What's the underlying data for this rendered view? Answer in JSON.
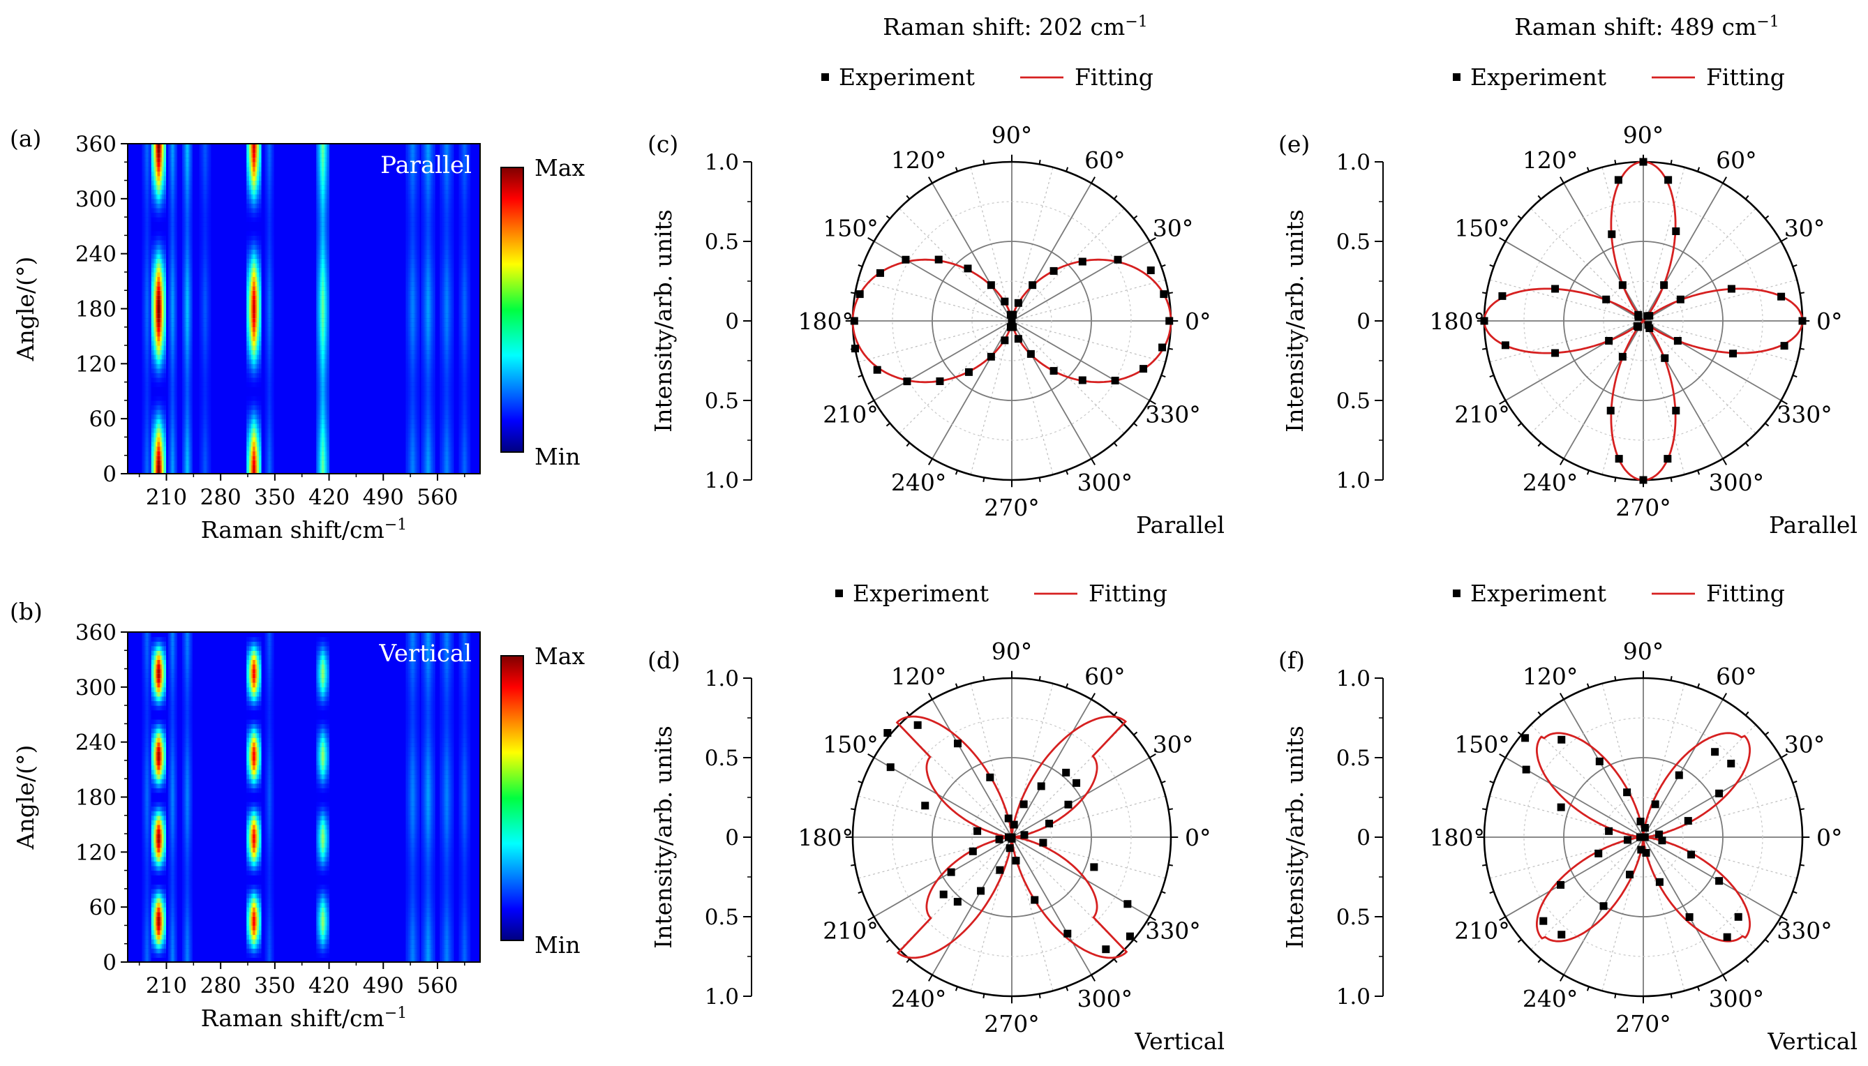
{
  "figure": {
    "titles": {
      "col1": "Raman shift: 202 cm",
      "col1_sup": "−1",
      "col2": "Raman shift: 489 cm",
      "col2_sup": "−1"
    },
    "legend": {
      "experiment": "Experiment",
      "fitting": "Fitting"
    },
    "colors": {
      "fit": "#d62020",
      "marker": "#000000",
      "axis": "#000000",
      "grid": "#808080"
    }
  },
  "chart_data": [
    {
      "panel": "(a)",
      "type": "heatmap",
      "label": "Parallel",
      "xlabel": "Raman shift/cm",
      "xlabel_sup": "−1",
      "ylabel": "Angle/(°)",
      "xlim": [
        160,
        615
      ],
      "ylim": [
        0,
        360
      ],
      "xticks": [
        210,
        280,
        350,
        420,
        490,
        560
      ],
      "yticks": [
        0,
        60,
        120,
        180,
        240,
        300,
        360
      ],
      "colorbar": {
        "max": "Max",
        "min": "Min"
      },
      "peaks": [
        {
          "x": 185,
          "w": 2.2,
          "amp": 0.12
        },
        {
          "x": 200,
          "w": 3.2,
          "amp": 1.0,
          "mode": "par"
        },
        {
          "x": 218,
          "w": 2.0,
          "amp": 0.18
        },
        {
          "x": 237,
          "w": 2.2,
          "amp": 0.22
        },
        {
          "x": 260,
          "w": 2.5,
          "amp": 0.1
        },
        {
          "x": 323,
          "w": 3.2,
          "amp": 0.9,
          "mode": "par"
        },
        {
          "x": 343,
          "w": 2.0,
          "amp": 0.12
        },
        {
          "x": 412,
          "w": 2.8,
          "amp": 0.4
        },
        {
          "x": 528,
          "w": 3,
          "amp": 0.15
        },
        {
          "x": 548,
          "w": 3,
          "amp": 0.18
        },
        {
          "x": 572,
          "w": 3,
          "amp": 0.15
        },
        {
          "x": 595,
          "w": 2.5,
          "amp": 0.12
        }
      ]
    },
    {
      "panel": "(b)",
      "type": "heatmap",
      "label": "Vertical",
      "xlabel": "Raman shift/cm",
      "xlabel_sup": "−1",
      "ylabel": "Angle/(°)",
      "xlim": [
        160,
        615
      ],
      "ylim": [
        0,
        360
      ],
      "xticks": [
        210,
        280,
        350,
        420,
        490,
        560
      ],
      "yticks": [
        0,
        60,
        120,
        180,
        240,
        300,
        360
      ],
      "colorbar": {
        "max": "Max",
        "min": "Min"
      },
      "peaks": [
        {
          "x": 185,
          "w": 2.2,
          "amp": 0.12
        },
        {
          "x": 200,
          "w": 3.2,
          "amp": 0.95,
          "mode": "vert"
        },
        {
          "x": 218,
          "w": 2.0,
          "amp": 0.15
        },
        {
          "x": 237,
          "w": 2.2,
          "amp": 0.15
        },
        {
          "x": 323,
          "w": 3.2,
          "amp": 0.85,
          "mode": "vert"
        },
        {
          "x": 343,
          "w": 2.0,
          "amp": 0.1
        },
        {
          "x": 412,
          "w": 2.8,
          "amp": 0.45,
          "mode": "vert"
        },
        {
          "x": 528,
          "w": 3,
          "amp": 0.15
        },
        {
          "x": 548,
          "w": 3,
          "amp": 0.18
        },
        {
          "x": 572,
          "w": 3,
          "amp": 0.15
        },
        {
          "x": 595,
          "w": 2.5,
          "amp": 0.12
        }
      ]
    },
    {
      "panel": "(c)",
      "type": "scatter",
      "polar": true,
      "label": "Parallel",
      "raman_shift": 202,
      "ylabel": "Intensity/arb. units",
      "rticks": [
        "1.0",
        "0.5",
        "0",
        "0.5",
        "1.0"
      ],
      "fit": {
        "model": "a*cos^2",
        "a": 1.0,
        "b": 0.0,
        "offset": 0
      },
      "series": [
        {
          "name": "Experiment",
          "points": [
            [
              0,
              0.99
            ],
            [
              10,
              0.97
            ],
            [
              20,
              0.93
            ],
            [
              30,
              0.77
            ],
            [
              40,
              0.58
            ],
            [
              50,
              0.41
            ],
            [
              60,
              0.26
            ],
            [
              70,
              0.12
            ],
            [
              80,
              0.04
            ],
            [
              90,
              0.01
            ],
            [
              100,
              0.04
            ],
            [
              110,
              0.13
            ],
            [
              120,
              0.26
            ],
            [
              130,
              0.43
            ],
            [
              140,
              0.6
            ],
            [
              150,
              0.77
            ],
            [
              160,
              0.88
            ],
            [
              170,
              0.97
            ],
            [
              180,
              0.99
            ],
            [
              190,
              1.0
            ],
            [
              200,
              0.9
            ],
            [
              210,
              0.76
            ],
            [
              220,
              0.59
            ],
            [
              230,
              0.42
            ],
            [
              240,
              0.26
            ],
            [
              250,
              0.13
            ],
            [
              260,
              0.04
            ],
            [
              270,
              0.0
            ],
            [
              280,
              0.04
            ],
            [
              290,
              0.12
            ],
            [
              300,
              0.24
            ],
            [
              310,
              0.41
            ],
            [
              320,
              0.58
            ],
            [
              330,
              0.75
            ],
            [
              340,
              0.88
            ],
            [
              350,
              0.96
            ]
          ]
        }
      ]
    },
    {
      "panel": "(d)",
      "type": "scatter",
      "polar": true,
      "label": "Vertical",
      "raman_shift": 202,
      "ylabel": "Intensity/arb. units",
      "rticks": [
        "1.0",
        "0.5",
        "0",
        "0.5",
        "1.0"
      ],
      "fit": {
        "model": "sin^2(2θ)",
        "a": 0.72,
        "b": 1.02
      },
      "series": [
        {
          "name": "Experiment",
          "points": [
            [
              0,
              0.0
            ],
            [
              10,
              0.08
            ],
            [
              20,
              0.25
            ],
            [
              30,
              0.41
            ],
            [
              40,
              0.53
            ],
            [
              50,
              0.53
            ],
            [
              60,
              0.37
            ],
            [
              70,
              0.22
            ],
            [
              80,
              0.08
            ],
            [
              90,
              0.0
            ],
            [
              100,
              0.12
            ],
            [
              110,
              0.4
            ],
            [
              120,
              0.68
            ],
            [
              130,
              0.92
            ],
            [
              140,
              1.02
            ],
            [
              150,
              0.88
            ],
            [
              160,
              0.58
            ],
            [
              170,
              0.22
            ],
            [
              180,
              0.02
            ],
            [
              190,
              0.08
            ],
            [
              200,
              0.26
            ],
            [
              210,
              0.44
            ],
            [
              220,
              0.56
            ],
            [
              230,
              0.53
            ],
            [
              240,
              0.39
            ],
            [
              250,
              0.22
            ],
            [
              260,
              0.07
            ],
            [
              270,
              0.01
            ],
            [
              280,
              0.15
            ],
            [
              290,
              0.42
            ],
            [
              300,
              0.7
            ],
            [
              310,
              0.92
            ],
            [
              320,
              0.97
            ],
            [
              330,
              0.84
            ],
            [
              340,
              0.55
            ],
            [
              350,
              0.2
            ]
          ]
        }
      ]
    },
    {
      "panel": "(e)",
      "type": "scatter",
      "polar": true,
      "label": "Parallel",
      "raman_shift": 489,
      "ylabel": "Intensity/arb. units",
      "rticks": [
        "1.0",
        "0.5",
        "0",
        "0.5",
        "1.0"
      ],
      "fit": {
        "model": "cos^2(2θ)",
        "a": 1.0,
        "b": 1.0
      },
      "series": [
        {
          "name": "Experiment",
          "points": [
            [
              0,
              1.0
            ],
            [
              10,
              0.88
            ],
            [
              20,
              0.59
            ],
            [
              30,
              0.27
            ],
            [
              40,
              0.05
            ],
            [
              50,
              0.04
            ],
            [
              60,
              0.26
            ],
            [
              70,
              0.6
            ],
            [
              80,
              0.9
            ],
            [
              90,
              1.0
            ],
            [
              100,
              0.9
            ],
            [
              110,
              0.58
            ],
            [
              120,
              0.26
            ],
            [
              130,
              0.05
            ],
            [
              140,
              0.04
            ],
            [
              150,
              0.27
            ],
            [
              160,
              0.59
            ],
            [
              170,
              0.9
            ],
            [
              180,
              1.0
            ],
            [
              190,
              0.88
            ],
            [
              200,
              0.59
            ],
            [
              210,
              0.25
            ],
            [
              220,
              0.05
            ],
            [
              230,
              0.05
            ],
            [
              240,
              0.26
            ],
            [
              250,
              0.6
            ],
            [
              260,
              0.88
            ],
            [
              270,
              1.0
            ],
            [
              280,
              0.88
            ],
            [
              290,
              0.6
            ],
            [
              300,
              0.27
            ],
            [
              310,
              0.06
            ],
            [
              320,
              0.04
            ],
            [
              330,
              0.25
            ],
            [
              340,
              0.6
            ],
            [
              350,
              0.9
            ]
          ]
        }
      ]
    },
    {
      "panel": "(f)",
      "type": "scatter",
      "polar": true,
      "label": "Vertical",
      "raman_shift": 489,
      "ylabel": "Intensity/arb. units",
      "rticks": [
        "1.0",
        "0.5",
        "0",
        "0.5",
        "1.0"
      ],
      "fit": {
        "model": "sin^2(2θ)",
        "a": 0.9,
        "b": 0.88
      },
      "series": [
        {
          "name": "Experiment",
          "points": [
            [
              0,
              0.01
            ],
            [
              10,
              0.1
            ],
            [
              20,
              0.3
            ],
            [
              30,
              0.55
            ],
            [
              40,
              0.72
            ],
            [
              50,
              0.7
            ],
            [
              60,
              0.45
            ],
            [
              70,
              0.22
            ],
            [
              80,
              0.06
            ],
            [
              90,
              0.0
            ],
            [
              100,
              0.1
            ],
            [
              110,
              0.3
            ],
            [
              120,
              0.55
            ],
            [
              130,
              0.8
            ],
            [
              140,
              0.97
            ],
            [
              150,
              0.85
            ],
            [
              160,
              0.55
            ],
            [
              170,
              0.22
            ],
            [
              180,
              0.02
            ],
            [
              190,
              0.1
            ],
            [
              200,
              0.3
            ],
            [
              210,
              0.6
            ],
            [
              220,
              0.82
            ],
            [
              230,
              0.8
            ],
            [
              240,
              0.5
            ],
            [
              250,
              0.25
            ],
            [
              260,
              0.08
            ],
            [
              270,
              0.0
            ],
            [
              280,
              0.1
            ],
            [
              290,
              0.3
            ],
            [
              300,
              0.58
            ],
            [
              310,
              0.82
            ],
            [
              320,
              0.78
            ],
            [
              330,
              0.55
            ],
            [
              340,
              0.32
            ],
            [
              350,
              0.12
            ]
          ]
        }
      ]
    }
  ]
}
